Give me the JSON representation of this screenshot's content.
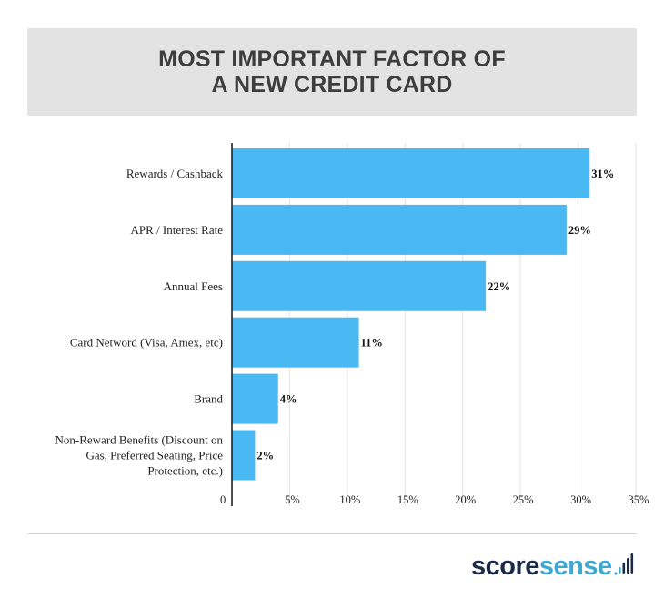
{
  "chart_data": {
    "type": "bar",
    "orientation": "horizontal",
    "title": "MOST IMPORTANT FACTOR OF\nA NEW CREDIT CARD",
    "categories": [
      "Rewards / Cashback",
      "APR / Interest Rate",
      "Annual Fees",
      "Card Netword (Visa, Amex, etc)",
      "Brand",
      "Non-Reward Benefits (Discount on Gas, Preferred Seating, Price Protection, etc.)"
    ],
    "values": [
      31,
      29,
      22,
      11,
      4,
      2
    ],
    "value_labels": [
      "31%",
      "29%",
      "22%",
      "11%",
      "4%",
      "2%"
    ],
    "xlim": [
      0,
      35
    ],
    "x_ticks": [
      0,
      5,
      10,
      15,
      20,
      25,
      30,
      35
    ],
    "x_tick_labels": [
      "0",
      "5%",
      "10%",
      "15%",
      "20%",
      "25%",
      "30%",
      "35%"
    ],
    "xlabel": "",
    "ylabel": "",
    "grid": true,
    "legend": "none",
    "bar_color": "#4ab8f2"
  },
  "brand": {
    "logo_part1": "score",
    "logo_part2": "sense",
    "logo_color_dark": "#1a2a47",
    "logo_color_accent": "#3fa8cf"
  }
}
